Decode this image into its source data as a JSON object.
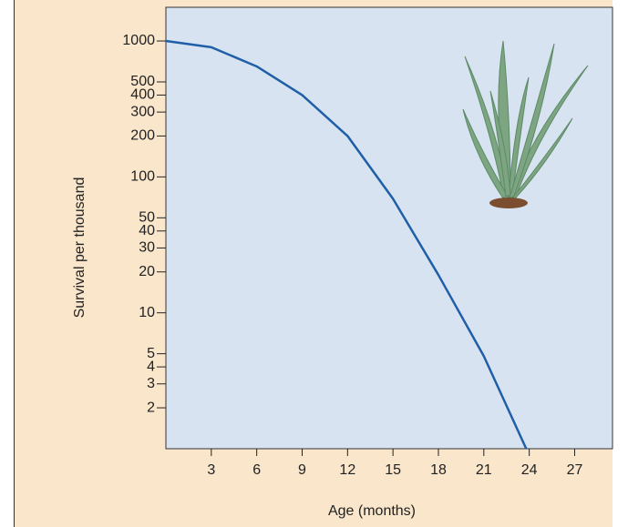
{
  "chart_data": {
    "type": "line",
    "x_label": "Age (months)",
    "y_label": "Survival per thousand",
    "x": [
      0,
      3,
      6,
      9,
      12,
      15,
      18,
      21,
      23.8
    ],
    "values": [
      1000,
      900,
      650,
      400,
      200,
      69,
      19,
      4.8,
      1
    ],
    "color": "#1f5fa8",
    "log_y": true,
    "xlim": [
      0,
      29.5
    ],
    "xticks": [
      3,
      6,
      9,
      12,
      15,
      18,
      21,
      24,
      27
    ],
    "ylim": [
      1,
      1770
    ],
    "yticks": [
      1000,
      500,
      400,
      300,
      200,
      100,
      50,
      40,
      30,
      20,
      10,
      5,
      4,
      3,
      2
    ]
  }
}
